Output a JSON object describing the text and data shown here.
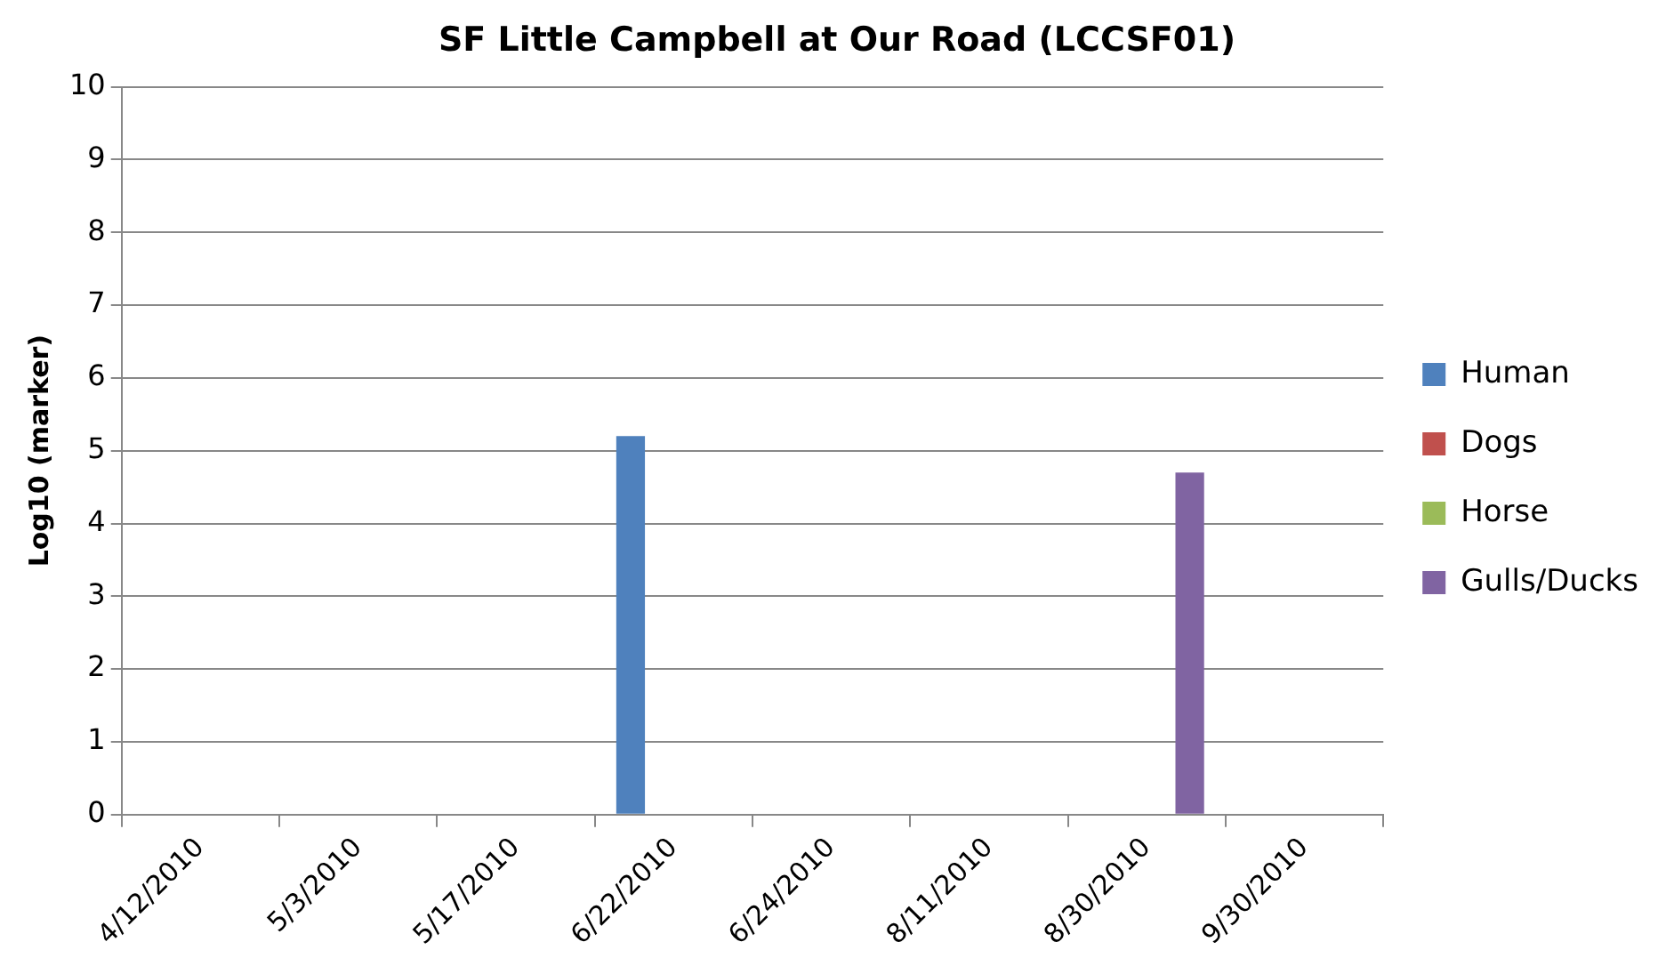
{
  "chart_data": {
    "type": "bar",
    "title": "SF Little Campbell at Our Road (LCCSF01)",
    "ylabel": "Log10 (marker)",
    "categories": [
      "4/12/2010",
      "5/3/2010",
      "5/17/2010",
      "6/22/2010",
      "6/24/2010",
      "8/11/2010",
      "8/30/2010",
      "9/30/2010"
    ],
    "series": [
      {
        "name": "Human",
        "color": "#4f81bd",
        "values": [
          null,
          null,
          null,
          5.2,
          null,
          null,
          null,
          null
        ]
      },
      {
        "name": "Dogs",
        "color": "#c0504d",
        "values": [
          null,
          null,
          null,
          null,
          null,
          null,
          null,
          null
        ]
      },
      {
        "name": "Horse",
        "color": "#9bbb59",
        "values": [
          null,
          null,
          null,
          null,
          null,
          null,
          null,
          null
        ]
      },
      {
        "name": "Gulls/Ducks",
        "color": "#8064a2",
        "values": [
          null,
          null,
          null,
          null,
          null,
          null,
          4.7,
          null
        ]
      }
    ],
    "ylim": [
      0,
      10
    ],
    "yticks": [
      0,
      1,
      2,
      3,
      4,
      5,
      6,
      7,
      8,
      9,
      10
    ],
    "grid": "y",
    "legend": "right"
  }
}
